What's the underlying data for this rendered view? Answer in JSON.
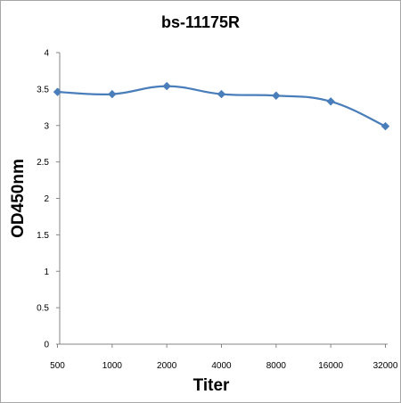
{
  "chart_data": {
    "type": "line",
    "title": "bs-11175R",
    "xlabel": "Titer",
    "ylabel": "OD450nm",
    "categories": [
      "500",
      "1000",
      "2000",
      "4000",
      "8000",
      "16000",
      "32000"
    ],
    "series": [
      {
        "values": [
          3.46,
          3.43,
          3.54,
          3.43,
          3.41,
          3.33,
          2.99
        ],
        "color": "#4a7ebb"
      }
    ],
    "ylim": [
      0,
      4
    ],
    "yticks": [
      "0",
      "0.5",
      "1",
      "1.5",
      "2",
      "2.5",
      "3",
      "3.5",
      "4"
    ],
    "grid": false,
    "legend": "none",
    "marker": "diamond"
  }
}
